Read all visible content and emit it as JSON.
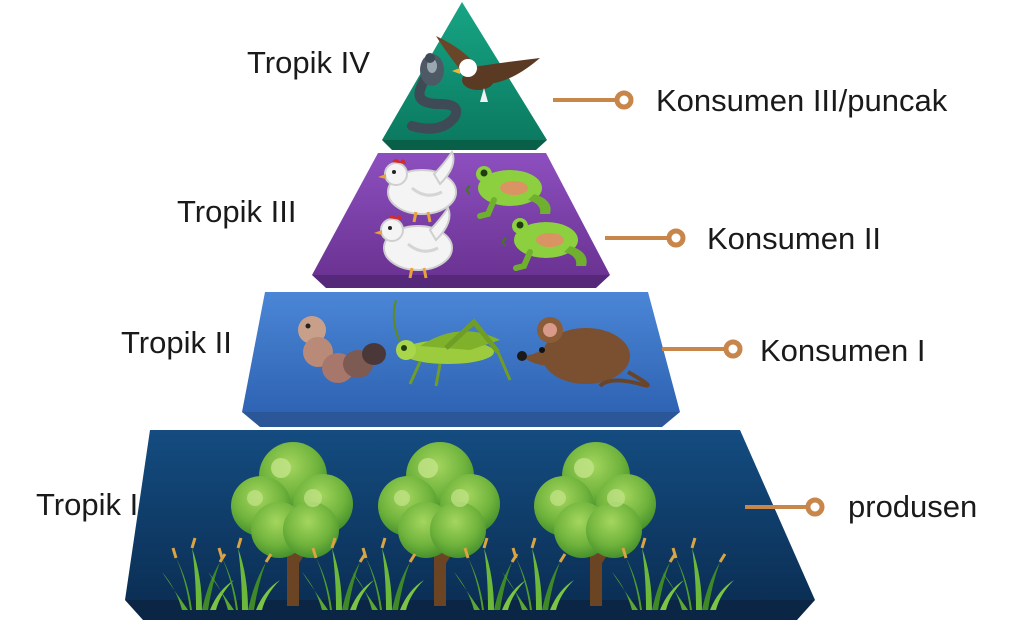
{
  "diagram": {
    "type": "trophic-pyramid",
    "tiers": [
      {
        "tier_label": "Tropik IV",
        "role_label": "Konsumen III/puncak",
        "fill": "#0f8a6e",
        "organisms": [
          "eagle-icon",
          "cobra-icon"
        ]
      },
      {
        "tier_label": "Tropik III",
        "role_label": "Konsumen II",
        "fill": "#7a3fa3",
        "organisms": [
          "chicken-icon",
          "chicken-icon",
          "frog-icon",
          "frog-icon"
        ]
      },
      {
        "tier_label": "Tropik II",
        "role_label": "Konsumen I",
        "fill": "#3a72c4",
        "organisms": [
          "caterpillar-icon",
          "grasshopper-icon",
          "rat-icon"
        ]
      },
      {
        "tier_label": "Tropik I",
        "role_label": "produsen",
        "fill": "#0e3a66",
        "organisms": [
          "tree-icon",
          "tree-icon",
          "tree-icon",
          "grass-icon"
        ]
      }
    ],
    "connector_color": "#c8864a"
  }
}
